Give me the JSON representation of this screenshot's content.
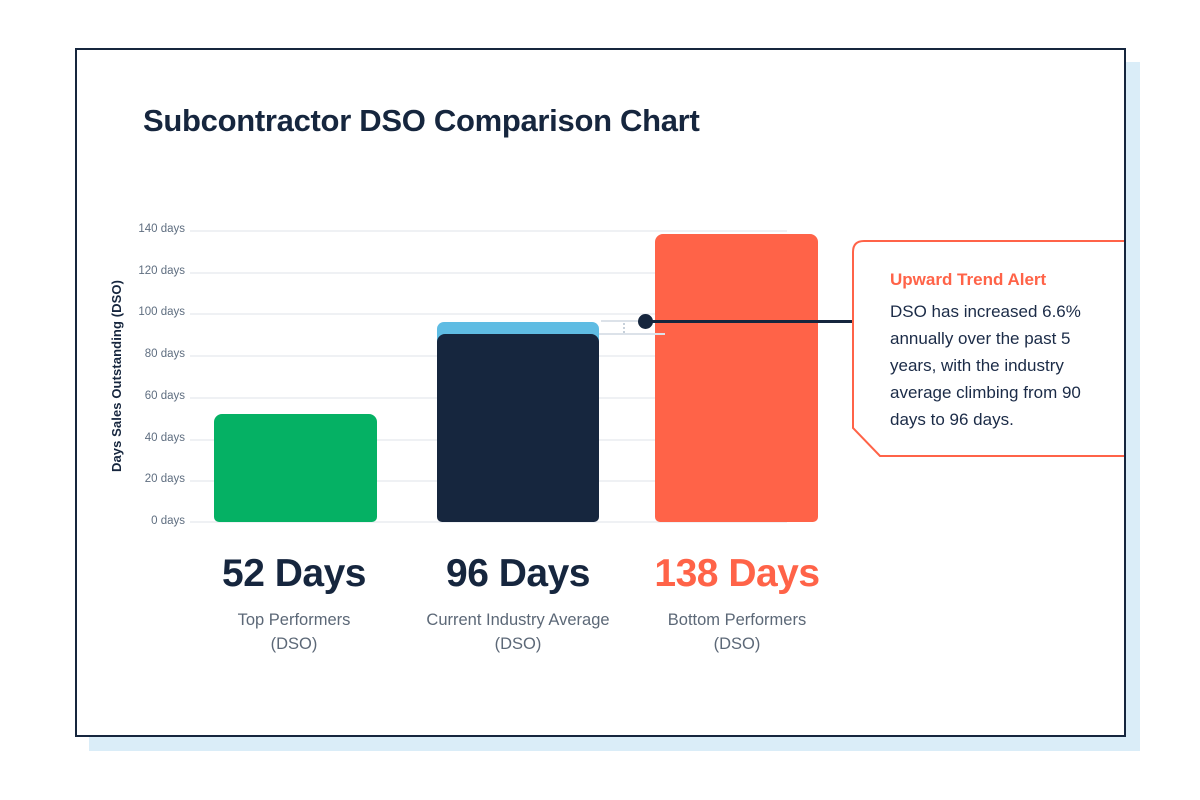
{
  "chart_data": {
    "type": "bar",
    "title": "Subcontractor DSO Comparison Chart",
    "ylabel": "Days Sales Outstanding (DSO)",
    "ylim": [
      0,
      140
    ],
    "ytick_step": 20,
    "ytick_labels": [
      "140 days",
      "120 days",
      "100 days",
      "80 days",
      "60 days",
      "40 days",
      "20 days",
      "0 days"
    ],
    "grid": true,
    "legend": "none",
    "categories": [
      "Top Performers (DSO)",
      "Current Industry Average (DSO)",
      "Bottom Performers (DSO)"
    ],
    "values": [
      52,
      96,
      138
    ],
    "bars": [
      {
        "value": 52,
        "value_label": "52 Days",
        "value_color": "#16263e",
        "color": "#05b164",
        "label_line1": "Top Performers",
        "label_line2": "(DSO)"
      },
      {
        "value": 96,
        "value_label": "96 Days",
        "value_color": "#16263e",
        "color": "#16263e",
        "dark_top": 90,
        "cap_color": "#5fbce3",
        "label_line1": "Current Industry Average",
        "label_line2": "(DSO)"
      },
      {
        "value": 138,
        "value_label": "138 Days",
        "value_color": "#ff6348",
        "color": "#ff6348",
        "label_line1": "Bottom Performers",
        "label_line2": "(DSO)"
      }
    ],
    "annotation": {
      "title": "Upward Trend Alert",
      "body": "DSO has increased 6.6% annually over the past 5 years, with the industry average climbing from 90 days to 96 days."
    }
  },
  "colors": {
    "navy": "#16263e",
    "green": "#05b164",
    "coral": "#ff6348",
    "cap_blue": "#5fbce3",
    "card_shadow": "#daedf8",
    "gridline": "#eff1f4"
  }
}
